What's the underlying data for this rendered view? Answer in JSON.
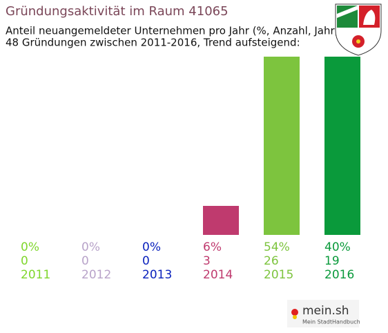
{
  "chart_data": {
    "type": "bar",
    "title": "Gründungsaktivität im Raum 41065",
    "subtitle": [
      "Anteil neuangemeldeter Unternehmen pro Jahr (%, Anzahl, Jahr)",
      "48 Gründungen zwischen 2011-2016, Trend aufsteigend:"
    ],
    "categories": [
      "2011",
      "2012",
      "2013",
      "2014",
      "2015",
      "2016"
    ],
    "values": [
      0,
      0,
      0,
      6,
      54,
      40
    ],
    "value_labels": [
      "0%",
      "0%",
      "0%",
      "6%",
      "54%",
      "40%"
    ],
    "counts": [
      0,
      0,
      0,
      3,
      26,
      19
    ],
    "colors": [
      "#7fd62c",
      "#b8a3c9",
      "#0b22bd",
      "#bf3a6e",
      "#7dc43e",
      "#0a9a3b"
    ]
  },
  "logo": {
    "name": "mein.sh",
    "tagline": "Mein StadtHandbuch"
  }
}
